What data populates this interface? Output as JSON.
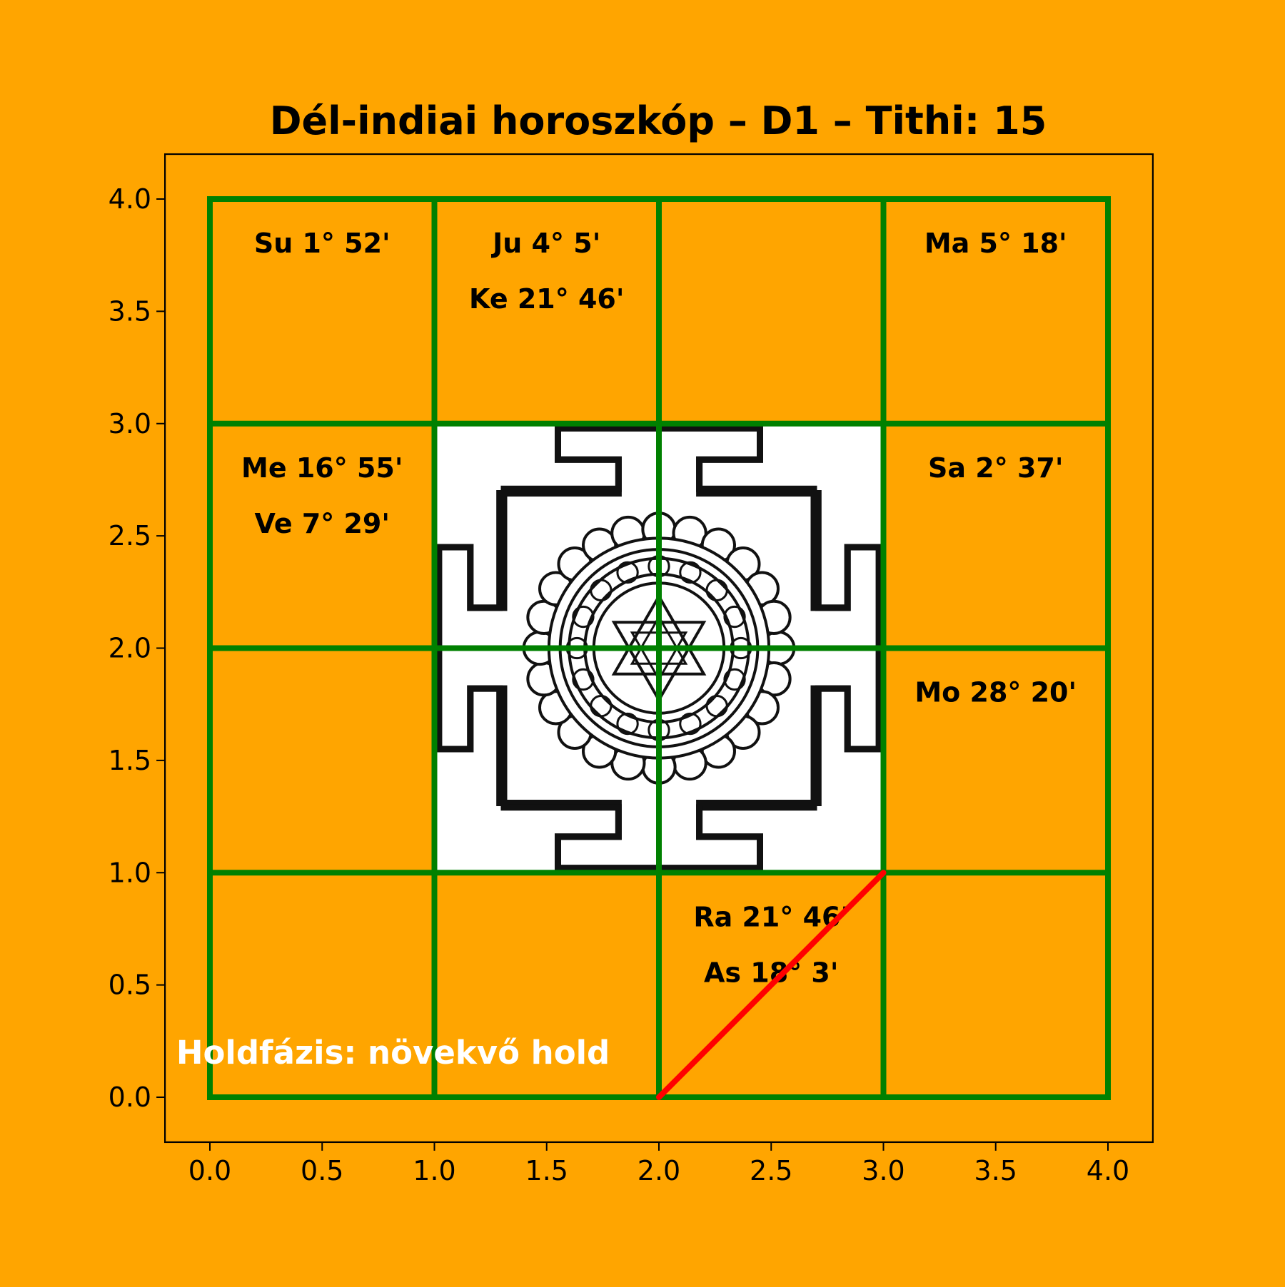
{
  "chart": {
    "title": "Dél-indiai horoszkóp – D1 – Tithi: 15",
    "background_color": "#FFA500",
    "grid_color": "#008000",
    "center_fill": "#FFFFFF",
    "ascendant_line_color": "#FF0000",
    "axis_range": {
      "x": [
        -0.2,
        4.2
      ],
      "y": [
        -0.2,
        4.2
      ]
    },
    "grid_range": {
      "x": [
        0,
        4
      ],
      "y": [
        0,
        4
      ]
    },
    "x_ticks": [
      "0.0",
      "0.5",
      "1.0",
      "1.5",
      "2.0",
      "2.5",
      "3.0",
      "3.5",
      "4.0"
    ],
    "y_ticks": [
      "0.0",
      "0.5",
      "1.0",
      "1.5",
      "2.0",
      "2.5",
      "3.0",
      "3.5",
      "4.0"
    ],
    "moon_phase_label": "Holdfázis: növekvő hold",
    "center_image": "yantra-icon",
    "ascendant_line": {
      "from": [
        2,
        0
      ],
      "to": [
        3,
        1
      ]
    }
  },
  "houses": [
    {
      "col": 0,
      "row": 3,
      "planets": [
        "Su 1° 52'"
      ]
    },
    {
      "col": 1,
      "row": 3,
      "planets": [
        "Ju 4° 5'",
        "Ke 21° 46'"
      ]
    },
    {
      "col": 2,
      "row": 3,
      "planets": []
    },
    {
      "col": 3,
      "row": 3,
      "planets": [
        "Ma 5° 18'"
      ]
    },
    {
      "col": 0,
      "row": 2,
      "planets": [
        "Me 16° 55'",
        "Ve 7° 29'"
      ]
    },
    {
      "col": 3,
      "row": 2,
      "planets": [
        "Sa 2° 37'"
      ]
    },
    {
      "col": 0,
      "row": 1,
      "planets": []
    },
    {
      "col": 3,
      "row": 1,
      "planets": [
        "Mo 28° 20'"
      ]
    },
    {
      "col": 0,
      "row": 0,
      "planets": []
    },
    {
      "col": 1,
      "row": 0,
      "planets": []
    },
    {
      "col": 2,
      "row": 0,
      "planets": [
        "Ra 21° 46'",
        "As 18° 3'"
      ]
    },
    {
      "col": 3,
      "row": 0,
      "planets": []
    }
  ]
}
